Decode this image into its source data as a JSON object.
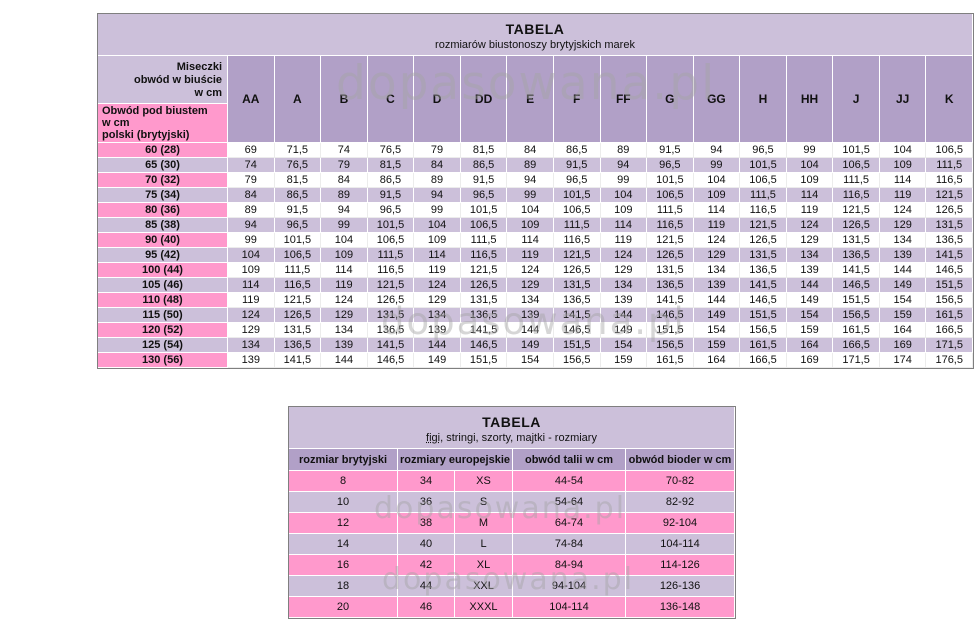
{
  "watermark": "dopasowana.pl",
  "colors": {
    "pink": "#FF99CC",
    "purple": "#B1A0C7",
    "lavender": "#CCC0DA"
  },
  "bra_table": {
    "title": "TABELA",
    "subtitle": "rozmiarów biustonoszy brytyjskich marek",
    "corner_top": "Miseczki\nobwód w biuście\nw cm",
    "corner_bottom": "Obwód pod biustem\nw cm\npolski (brytyjski)",
    "cup_sizes": [
      "AA",
      "A",
      "B",
      "C",
      "D",
      "DD",
      "E",
      "F",
      "FF",
      "G",
      "GG",
      "H",
      "HH",
      "J",
      "JJ",
      "K"
    ],
    "rows": [
      {
        "label": "60 (28)",
        "values": [
          "69",
          "71,5",
          "74",
          "76,5",
          "79",
          "81,5",
          "84",
          "86,5",
          "89",
          "91,5",
          "94",
          "96,5",
          "99",
          "101,5",
          "104",
          "106,5"
        ]
      },
      {
        "label": "65 (30)",
        "values": [
          "74",
          "76,5",
          "79",
          "81,5",
          "84",
          "86,5",
          "89",
          "91,5",
          "94",
          "96,5",
          "99",
          "101,5",
          "104",
          "106,5",
          "109",
          "111,5"
        ]
      },
      {
        "label": "70 (32)",
        "values": [
          "79",
          "81,5",
          "84",
          "86,5",
          "89",
          "91,5",
          "94",
          "96,5",
          "99",
          "101,5",
          "104",
          "106,5",
          "109",
          "111,5",
          "114",
          "116,5"
        ]
      },
      {
        "label": "75 (34)",
        "values": [
          "84",
          "86,5",
          "89",
          "91,5",
          "94",
          "96,5",
          "99",
          "101,5",
          "104",
          "106,5",
          "109",
          "111,5",
          "114",
          "116,5",
          "119",
          "121,5"
        ]
      },
      {
        "label": "80 (36)",
        "values": [
          "89",
          "91,5",
          "94",
          "96,5",
          "99",
          "101,5",
          "104",
          "106,5",
          "109",
          "111,5",
          "114",
          "116,5",
          "119",
          "121,5",
          "124",
          "126,5"
        ]
      },
      {
        "label": "85 (38)",
        "values": [
          "94",
          "96,5",
          "99",
          "101,5",
          "104",
          "106,5",
          "109",
          "111,5",
          "114",
          "116,5",
          "119",
          "121,5",
          "124",
          "126,5",
          "129",
          "131,5"
        ]
      },
      {
        "label": "90 (40)",
        "values": [
          "99",
          "101,5",
          "104",
          "106,5",
          "109",
          "111,5",
          "114",
          "116,5",
          "119",
          "121,5",
          "124",
          "126,5",
          "129",
          "131,5",
          "134",
          "136,5"
        ]
      },
      {
        "label": "95 (42)",
        "values": [
          "104",
          "106,5",
          "109",
          "111,5",
          "114",
          "116,5",
          "119",
          "121,5",
          "124",
          "126,5",
          "129",
          "131,5",
          "134",
          "136,5",
          "139",
          "141,5"
        ]
      },
      {
        "label": "100 (44)",
        "values": [
          "109",
          "111,5",
          "114",
          "116,5",
          "119",
          "121,5",
          "124",
          "126,5",
          "129",
          "131,5",
          "134",
          "136,5",
          "139",
          "141,5",
          "144",
          "146,5"
        ]
      },
      {
        "label": "105 (46)",
        "values": [
          "114",
          "116,5",
          "119",
          "121,5",
          "124",
          "126,5",
          "129",
          "131,5",
          "134",
          "136,5",
          "139",
          "141,5",
          "144",
          "146,5",
          "149",
          "151,5"
        ]
      },
      {
        "label": "110 (48)",
        "values": [
          "119",
          "121,5",
          "124",
          "126,5",
          "129",
          "131,5",
          "134",
          "136,5",
          "139",
          "141,5",
          "144",
          "146,5",
          "149",
          "151,5",
          "154",
          "156,5"
        ]
      },
      {
        "label": "115 (50)",
        "values": [
          "124",
          "126,5",
          "129",
          "131,5",
          "134",
          "136,5",
          "139",
          "141,5",
          "144",
          "146,5",
          "149",
          "151,5",
          "154",
          "156,5",
          "159",
          "161,5"
        ]
      },
      {
        "label": "120 (52)",
        "values": [
          "129",
          "131,5",
          "134",
          "136,5",
          "139",
          "141,5",
          "144",
          "146,5",
          "149",
          "151,5",
          "154",
          "156,5",
          "159",
          "161,5",
          "164",
          "166,5"
        ]
      },
      {
        "label": "125 (54)",
        "values": [
          "134",
          "136,5",
          "139",
          "141,5",
          "144",
          "146,5",
          "149",
          "151,5",
          "154",
          "156,5",
          "159",
          "161,5",
          "164",
          "166,5",
          "169",
          "171,5"
        ]
      },
      {
        "label": "130 (56)",
        "values": [
          "139",
          "141,5",
          "144",
          "146,5",
          "149",
          "151,5",
          "154",
          "156,5",
          "159",
          "161,5",
          "164",
          "166,5",
          "169",
          "171,5",
          "174",
          "176,5"
        ]
      }
    ]
  },
  "panties_table": {
    "title": "TABELA",
    "subtitle_underlined": "figi",
    "subtitle_rest": ", stringi, szorty, majtki - rozmiary",
    "headers": [
      "rozmiar brytyjski",
      "rozmiary europejskie",
      "obwód talii w cm",
      "obwód bioder w cm"
    ],
    "rows": [
      {
        "uk": "8",
        "eu": "34",
        "letter": "XS",
        "waist": "44-54",
        "hips": "70-82"
      },
      {
        "uk": "10",
        "eu": "36",
        "letter": "S",
        "waist": "54-64",
        "hips": "82-92"
      },
      {
        "uk": "12",
        "eu": "38",
        "letter": "M",
        "waist": "64-74",
        "hips": "92-104"
      },
      {
        "uk": "14",
        "eu": "40",
        "letter": "L",
        "waist": "74-84",
        "hips": "104-114"
      },
      {
        "uk": "16",
        "eu": "42",
        "letter": "XL",
        "waist": "84-94",
        "hips": "114-126"
      },
      {
        "uk": "18",
        "eu": "44",
        "letter": "XXL",
        "waist": "94-104",
        "hips": "126-136"
      },
      {
        "uk": "20",
        "eu": "46",
        "letter": "XXXL",
        "waist": "104-114",
        "hips": "136-148"
      }
    ]
  }
}
